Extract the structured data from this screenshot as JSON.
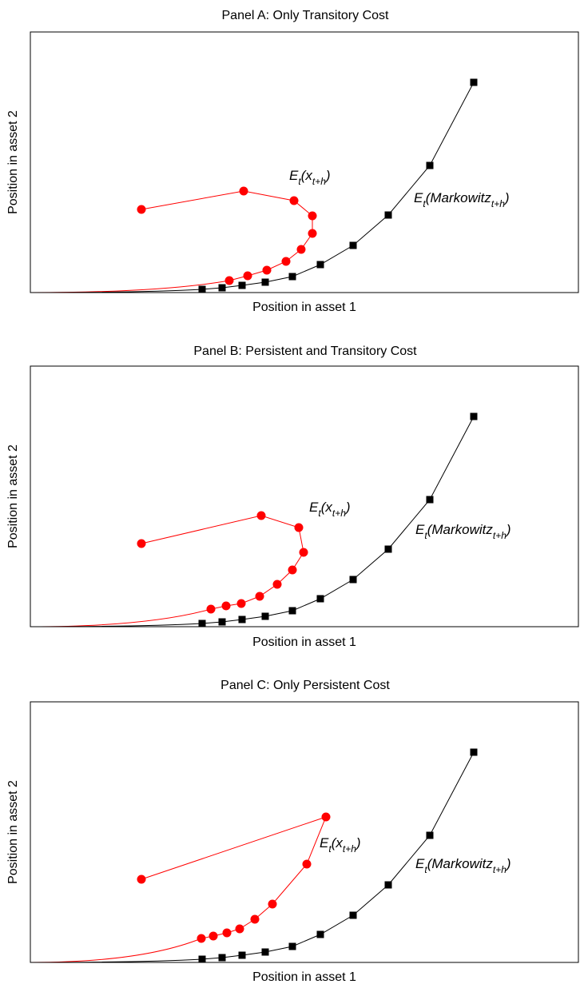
{
  "colors": {
    "markowitz": "#000000",
    "portfolio": "#ff0000",
    "frame": "#000000",
    "background": "#ffffff"
  },
  "chart_data": [
    {
      "type": "line",
      "title": "Panel A: Only Transitory Cost",
      "xlabel": "Position in asset 1",
      "ylabel": "Position in asset 2",
      "xlim": [
        0,
        686
      ],
      "ylim": [
        0,
        326
      ],
      "x_ticks_shown": false,
      "y_ticks_shown": false,
      "grid": false,
      "series": [
        {
          "label_main": "E",
          "label_sub1": "t",
          "label_mid": "(x",
          "label_sub2": "t+h",
          "label_end": ")",
          "color": "#ff0000",
          "marker": "circle",
          "start": [
            0,
            0
          ],
          "x": [
            139,
            267,
            330,
            353,
            353,
            339,
            320,
            296,
            272,
            249
          ],
          "y": [
            104,
            127,
            115,
            96,
            74,
            54,
            39,
            28,
            21,
            15
          ]
        },
        {
          "label_main": "E",
          "label_sub1": "t",
          "label_mid": "(Markowitz",
          "label_sub2": "t+h",
          "label_end": ")",
          "color": "#000000",
          "marker": "square",
          "start": [
            0,
            0
          ],
          "x": [
            555,
            500,
            448,
            404,
            363,
            328,
            294,
            265,
            240,
            215
          ],
          "y": [
            263,
            159,
            97,
            59,
            35,
            20,
            13,
            9,
            6,
            4
          ]
        }
      ]
    },
    {
      "type": "line",
      "title": "Panel B: Persistent and Transitory Cost",
      "xlabel": "Position in asset 1",
      "ylabel": "Position in asset 2",
      "xlim": [
        0,
        686
      ],
      "ylim": [
        0,
        326
      ],
      "x_ticks_shown": false,
      "y_ticks_shown": false,
      "grid": false,
      "series": [
        {
          "label_main": "E",
          "label_sub1": "t",
          "label_mid": "(x",
          "label_sub2": "t+h",
          "label_end": ")",
          "color": "#ff0000",
          "marker": "circle",
          "start": [
            0,
            0
          ],
          "x": [
            139,
            289,
            336,
            342,
            328,
            309,
            287,
            264,
            245,
            226
          ],
          "y": [
            104,
            139,
            124,
            93,
            71,
            53,
            38,
            29,
            26,
            22
          ]
        },
        {
          "label_main": "E",
          "label_sub1": "t",
          "label_mid": "(Markowitz",
          "label_sub2": "t+h",
          "label_end": ")",
          "color": "#000000",
          "marker": "square",
          "start": [
            0,
            0
          ],
          "x": [
            555,
            500,
            448,
            404,
            363,
            328,
            294,
            265,
            240,
            215
          ],
          "y": [
            263,
            159,
            97,
            59,
            35,
            20,
            13,
            9,
            6,
            4
          ]
        }
      ]
    },
    {
      "type": "line",
      "title": "Panel C: Only Persistent Cost",
      "xlabel": "Position in asset 1",
      "ylabel": "Position in asset 2",
      "xlim": [
        0,
        686
      ],
      "ylim": [
        0,
        326
      ],
      "x_ticks_shown": false,
      "y_ticks_shown": false,
      "grid": false,
      "series": [
        {
          "label_main": "E",
          "label_sub1": "t",
          "label_mid": "(x",
          "label_sub2": "t+h",
          "label_end": ")",
          "color": "#ff0000",
          "marker": "circle",
          "start": [
            0,
            0
          ],
          "x": [
            139,
            370,
            346,
            303,
            281,
            262,
            246,
            229,
            214
          ],
          "y": [
            104,
            182,
            123,
            73,
            54,
            42,
            37,
            33,
            30
          ]
        },
        {
          "label_main": "E",
          "label_sub1": "t",
          "label_mid": "(Markowitz",
          "label_sub2": "t+h",
          "label_end": ")",
          "color": "#000000",
          "marker": "square",
          "start": [
            0,
            0
          ],
          "x": [
            555,
            500,
            448,
            404,
            363,
            328,
            294,
            265,
            240,
            215
          ],
          "y": [
            263,
            159,
            97,
            59,
            35,
            20,
            13,
            9,
            6,
            4
          ]
        }
      ]
    }
  ]
}
